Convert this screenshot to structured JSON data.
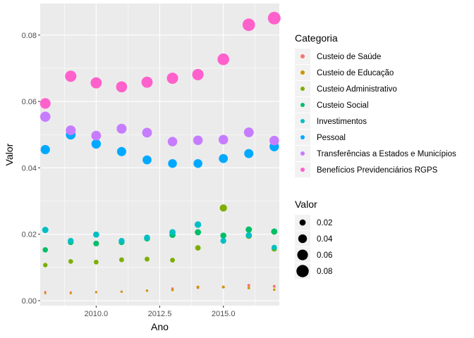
{
  "chart_data": {
    "type": "scatter",
    "xlabel": "Ano",
    "ylabel": "Valor",
    "xlim": [
      2007.8,
      2017.2
    ],
    "ylim": [
      -0.0015,
      0.0895
    ],
    "x_ticks": [
      2010.0,
      2012.5,
      2015.0
    ],
    "x_tick_labels": [
      "2010.0",
      "2012.5",
      "2015.0"
    ],
    "y_ticks": [
      0.0,
      0.02,
      0.04,
      0.06,
      0.08
    ],
    "y_tick_labels": [
      "0.00",
      "0.02",
      "0.04",
      "0.06",
      "0.08"
    ],
    "grid": true,
    "legend_position": "right",
    "color_legend_title": "Categoria",
    "size_legend_title": "Valor",
    "size_legend": {
      "values": [
        0.02,
        0.04,
        0.06,
        0.08
      ],
      "labels": [
        "0.02",
        "0.04",
        "0.06",
        "0.08"
      ]
    },
    "x": [
      2008,
      2009,
      2010,
      2011,
      2012,
      2013,
      2014,
      2015,
      2016,
      2017
    ],
    "series": [
      {
        "name": "Custeio de Saúde",
        "color": "#F8766D",
        "values": [
          0.0026,
          0.0025,
          0.0026,
          0.0027,
          0.003,
          0.0036,
          0.0039,
          0.0041,
          0.0046,
          0.0043
        ]
      },
      {
        "name": "Custeio de Educação",
        "color": "#CD9600",
        "values": [
          0.0022,
          0.0022,
          0.0025,
          0.0027,
          0.003,
          0.0032,
          0.0041,
          0.0041,
          0.0038,
          0.0033
        ]
      },
      {
        "name": "Custeio Administrativo",
        "color": "#7CAE00",
        "values": [
          0.0107,
          0.0118,
          0.0116,
          0.0123,
          0.0125,
          0.0122,
          0.0159,
          0.0279,
          0.0195,
          0.0156
        ]
      },
      {
        "name": "Custeio Social",
        "color": "#00BE67",
        "values": [
          0.0153,
          0.0176,
          0.0172,
          0.0176,
          0.0187,
          0.0198,
          0.0206,
          0.0196,
          0.0214,
          0.0208
        ]
      },
      {
        "name": "Investimentos",
        "color": "#00BFC4",
        "values": [
          0.0213,
          0.018,
          0.0199,
          0.018,
          0.019,
          0.0206,
          0.0229,
          0.018,
          0.0197,
          0.016
        ]
      },
      {
        "name": "Pessoal",
        "color": "#00A9FF",
        "values": [
          0.0455,
          0.05,
          0.0472,
          0.0449,
          0.0424,
          0.0413,
          0.0413,
          0.0428,
          0.0443,
          0.0464
        ]
      },
      {
        "name": "Transferências a Estados e Municípios",
        "color": "#C77CFF",
        "values": [
          0.0554,
          0.0513,
          0.0497,
          0.0518,
          0.0506,
          0.0479,
          0.0483,
          0.0485,
          0.0507,
          0.0482
        ]
      },
      {
        "name": "Benefícios Previdenciários RGPS",
        "color": "#FF61CC",
        "values": [
          0.0594,
          0.0676,
          0.0656,
          0.0644,
          0.0658,
          0.067,
          0.0681,
          0.0727,
          0.0831,
          0.0851
        ]
      }
    ]
  }
}
